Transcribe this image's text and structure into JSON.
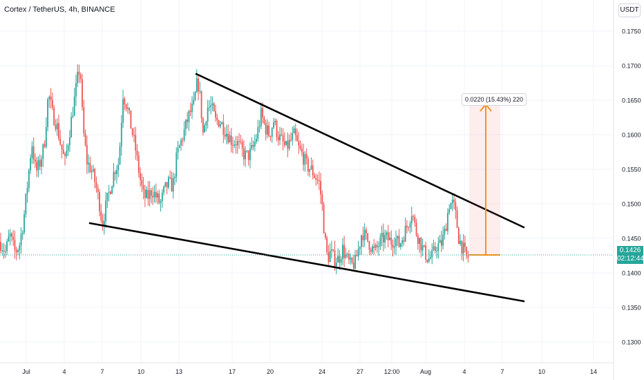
{
  "header": {
    "title": "Cortex / TetherUS, 4h, BINANCE",
    "currency": "USDT"
  },
  "last_price": {
    "value": "0.1426",
    "countdown": "02:12:44",
    "color": "#26a69a"
  },
  "colors": {
    "up": "#26a69a",
    "down": "#ef5350",
    "measure": "#f7931a",
    "trendline": "#000000"
  },
  "measure": {
    "label": "0.0220 (15.43%) 220",
    "from": 0.1426,
    "to": 0.1646
  },
  "chart_data": {
    "type": "candlestick",
    "title": "Cortex / TetherUS, 4h, BINANCE",
    "xlabel": "",
    "ylabel": "",
    "ylim": [
      0.127,
      0.1795
    ],
    "grid": true,
    "y_ticks": [
      "0.1300",
      "0.1350",
      "0.1400",
      "0.1450",
      "0.1500",
      "0.1550",
      "0.1600",
      "0.1650",
      "0.1700",
      "0.1750"
    ],
    "x_ticks": [
      "Jul",
      "4",
      "7",
      "10",
      "13",
      "17",
      "20",
      "24",
      "27",
      "12:00",
      "Aug",
      "4",
      "7",
      "10",
      "14"
    ],
    "price_anchors": [
      [
        0,
        0.1445
      ],
      [
        8,
        0.143
      ],
      [
        14,
        0.1455
      ],
      [
        22,
        0.143
      ],
      [
        28,
        0.144
      ],
      [
        34,
        0.1475
      ],
      [
        40,
        0.153
      ],
      [
        46,
        0.159
      ],
      [
        52,
        0.1545
      ],
      [
        58,
        0.156
      ],
      [
        64,
        0.1585
      ],
      [
        70,
        0.166
      ],
      [
        76,
        0.163
      ],
      [
        82,
        0.1615
      ],
      [
        88,
        0.1585
      ],
      [
        94,
        0.156
      ],
      [
        100,
        0.16
      ],
      [
        106,
        0.164
      ],
      [
        112,
        0.168
      ],
      [
        116,
        0.17
      ],
      [
        120,
        0.161
      ],
      [
        126,
        0.156
      ],
      [
        132,
        0.155
      ],
      [
        138,
        0.153
      ],
      [
        144,
        0.15
      ],
      [
        148,
        0.147
      ],
      [
        154,
        0.15
      ],
      [
        160,
        0.1525
      ],
      [
        166,
        0.155
      ],
      [
        172,
        0.156
      ],
      [
        178,
        0.166
      ],
      [
        184,
        0.164
      ],
      [
        190,
        0.161
      ],
      [
        196,
        0.158
      ],
      [
        202,
        0.154
      ],
      [
        208,
        0.151
      ],
      [
        214,
        0.151
      ],
      [
        220,
        0.152
      ],
      [
        226,
        0.151
      ],
      [
        232,
        0.15
      ],
      [
        238,
        0.152
      ],
      [
        244,
        0.153
      ],
      [
        250,
        0.1525
      ],
      [
        256,
        0.157
      ],
      [
        262,
        0.159
      ],
      [
        268,
        0.161
      ],
      [
        274,
        0.163
      ],
      [
        280,
        0.164
      ],
      [
        286,
        0.168
      ],
      [
        290,
        0.165
      ],
      [
        294,
        0.16
      ],
      [
        300,
        0.164
      ],
      [
        306,
        0.164
      ],
      [
        312,
        0.162
      ],
      [
        318,
        0.162
      ],
      [
        324,
        0.161
      ],
      [
        330,
        0.16
      ],
      [
        336,
        0.159
      ],
      [
        342,
        0.159
      ],
      [
        348,
        0.158
      ],
      [
        354,
        0.157
      ],
      [
        360,
        0.157
      ],
      [
        366,
        0.158
      ],
      [
        372,
        0.16
      ],
      [
        378,
        0.163
      ],
      [
        384,
        0.161
      ],
      [
        390,
        0.16
      ],
      [
        396,
        0.162
      ],
      [
        402,
        0.16
      ],
      [
        408,
        0.159
      ],
      [
        414,
        0.158
      ],
      [
        420,
        0.159
      ],
      [
        426,
        0.16
      ],
      [
        432,
        0.158
      ],
      [
        438,
        0.157
      ],
      [
        444,
        0.1555
      ],
      [
        450,
        0.155
      ],
      [
        456,
        0.154
      ],
      [
        462,
        0.153
      ],
      [
        466,
        0.15
      ],
      [
        470,
        0.145
      ],
      [
        474,
        0.142
      ],
      [
        478,
        0.143
      ],
      [
        484,
        0.142
      ],
      [
        490,
        0.142
      ],
      [
        496,
        0.1435
      ],
      [
        502,
        0.142
      ],
      [
        508,
        0.141
      ],
      [
        514,
        0.1415
      ],
      [
        520,
        0.144
      ],
      [
        524,
        0.146
      ],
      [
        530,
        0.145
      ],
      [
        536,
        0.144
      ],
      [
        542,
        0.143
      ],
      [
        548,
        0.144
      ],
      [
        554,
        0.145
      ],
      [
        560,
        0.145
      ],
      [
        566,
        0.1445
      ],
      [
        572,
        0.145
      ],
      [
        578,
        0.144
      ],
      [
        584,
        0.1455
      ],
      [
        590,
        0.147
      ],
      [
        596,
        0.149
      ],
      [
        602,
        0.146
      ],
      [
        608,
        0.1445
      ],
      [
        614,
        0.143
      ],
      [
        620,
        0.142
      ],
      [
        626,
        0.1425
      ],
      [
        632,
        0.144
      ],
      [
        638,
        0.144
      ],
      [
        644,
        0.146
      ],
      [
        650,
        0.15
      ],
      [
        656,
        0.15
      ],
      [
        660,
        0.148
      ],
      [
        664,
        0.145
      ],
      [
        668,
        0.144
      ],
      [
        672,
        0.143
      ],
      [
        676,
        0.142
      ],
      [
        679,
        0.1426
      ]
    ],
    "trendlines": [
      {
        "name": "upper",
        "points": [
          [
            284,
            0.1688
          ],
          [
            758,
            0.1466
          ]
        ]
      },
      {
        "name": "lower",
        "points": [
          [
            130,
            0.1472
          ],
          [
            758,
            0.1359
          ]
        ]
      }
    ]
  }
}
